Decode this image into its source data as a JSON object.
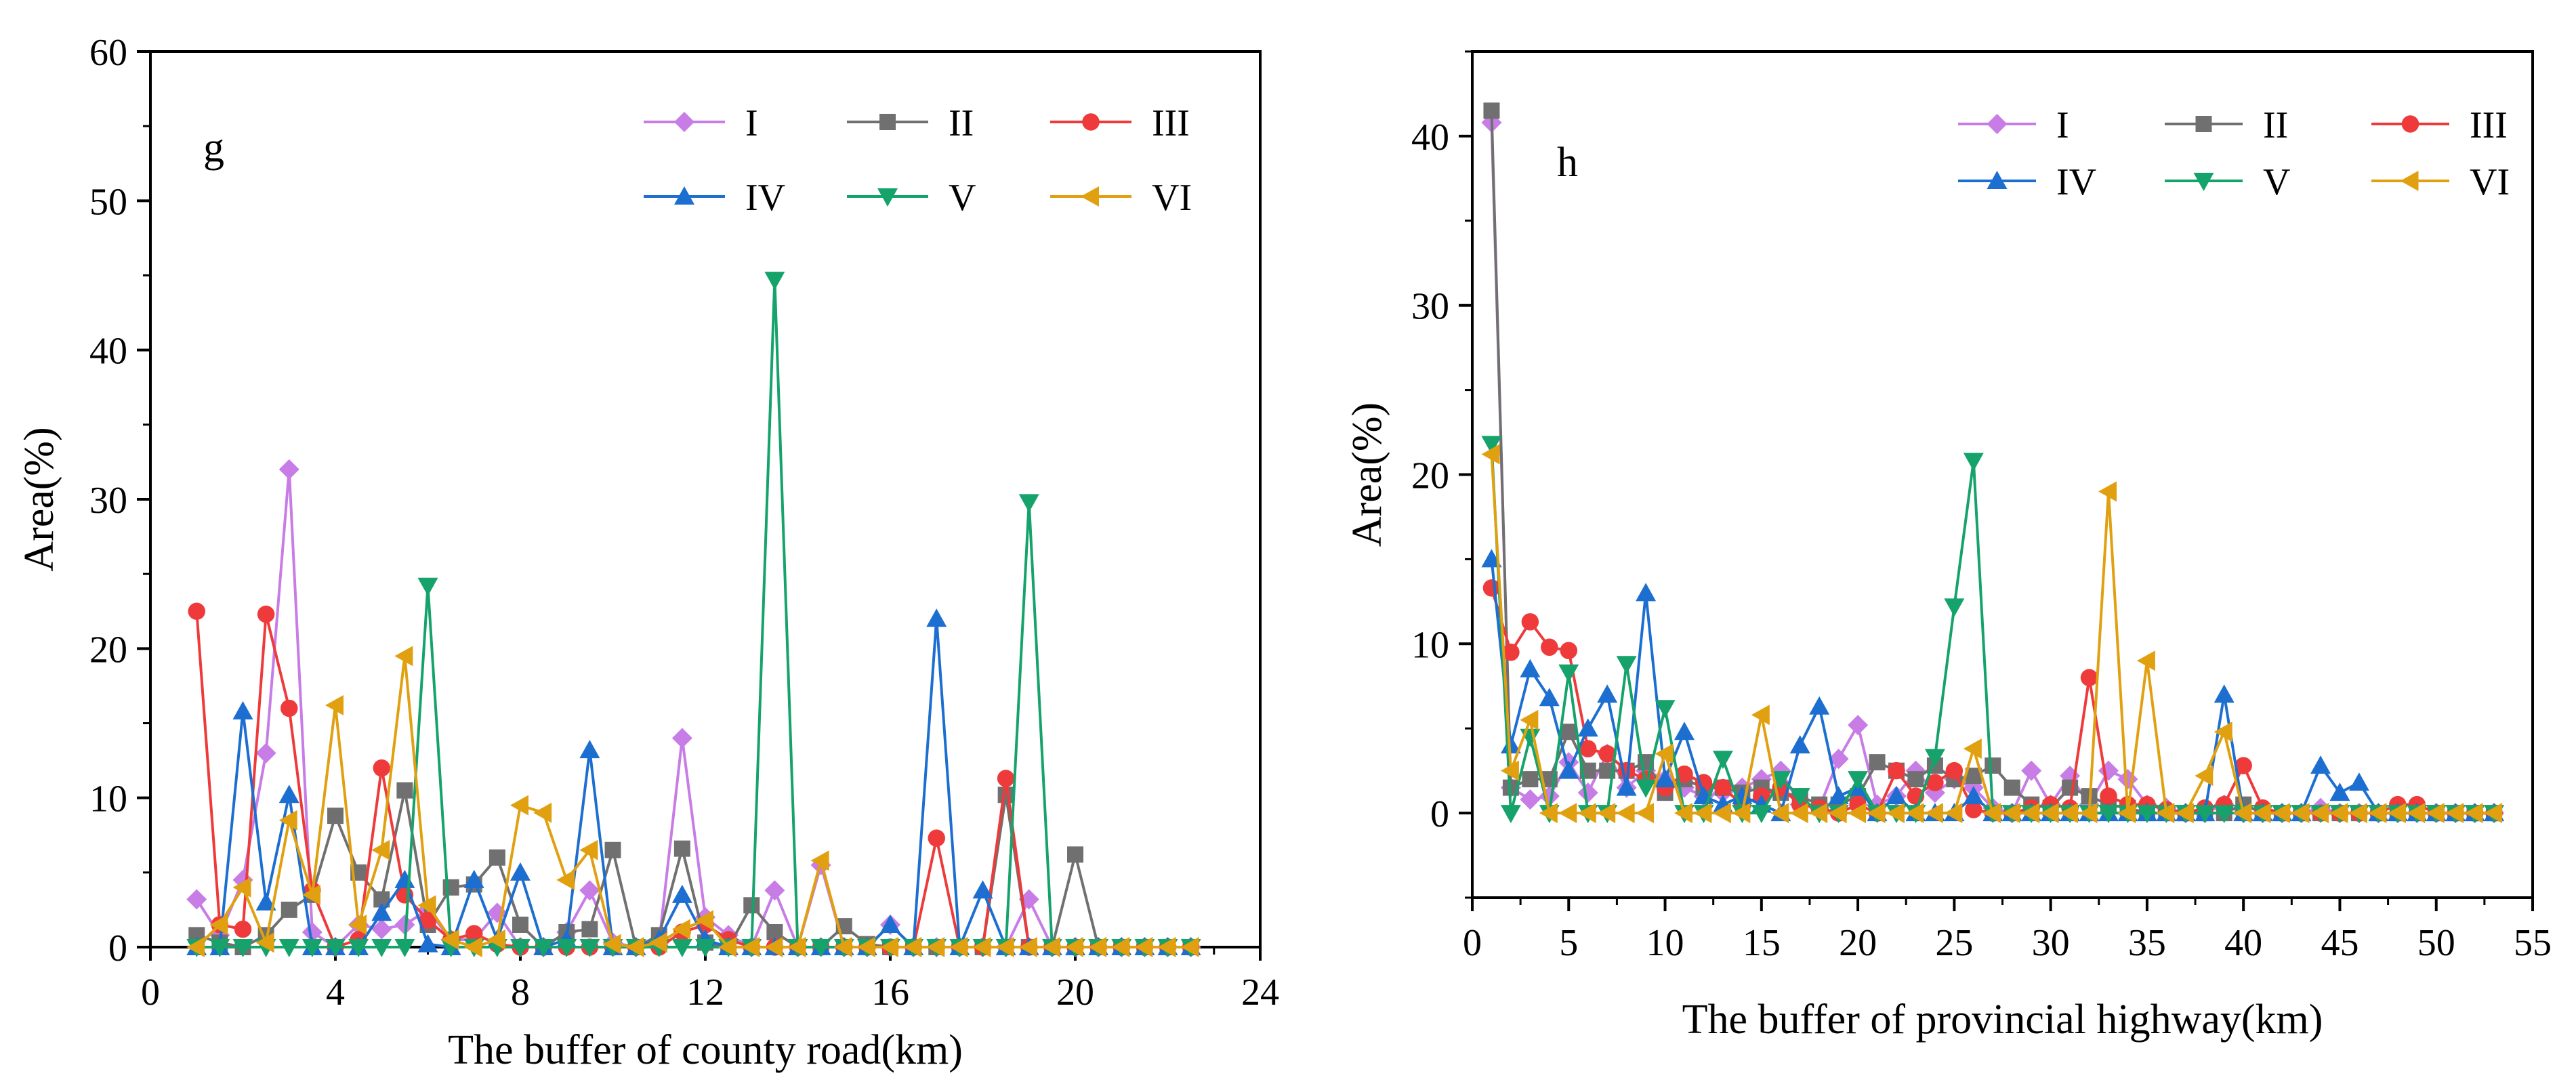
{
  "chart_data": [
    {
      "type": "line",
      "panel_label": "g",
      "title": "",
      "xlabel": "The buffer of county road(km)",
      "ylabel": "Area(%)",
      "xlim": [
        0,
        24
      ],
      "ylim": [
        0,
        60
      ],
      "xticks": [
        0,
        4,
        8,
        12,
        16,
        20,
        24
      ],
      "yticks": [
        0,
        10,
        20,
        30,
        40,
        50,
        60
      ],
      "grid": false,
      "legend_position": "top-right",
      "x": [
        1,
        1.5,
        2,
        2.5,
        3,
        3.5,
        4,
        4.5,
        5,
        5.5,
        6,
        6.5,
        7,
        7.5,
        8,
        8.5,
        9,
        9.5,
        10,
        10.5,
        11,
        11.5,
        12,
        12.5,
        13,
        13.5,
        14,
        14.5,
        15,
        15.5,
        16,
        16.5,
        17,
        17.5,
        18,
        18.5,
        19,
        19.5,
        20,
        20.5,
        21,
        21.5,
        22,
        22.5
      ],
      "series": [
        {
          "name": "I",
          "color": "#C77CE6",
          "marker": "diamond",
          "values": [
            3.2,
            0.8,
            4.5,
            13,
            32,
            1,
            0,
            1.5,
            1.2,
            1.5,
            2.5,
            0.5,
            0.5,
            2.3,
            0,
            0,
            1,
            3.8,
            0.3,
            0,
            0.3,
            14,
            2,
            0.8,
            0,
            3.8,
            0,
            5.5,
            0,
            0,
            1.5,
            0,
            0,
            0,
            0,
            0,
            3.2,
            0,
            0,
            0,
            0,
            0,
            0,
            0
          ]
        },
        {
          "name": "II",
          "color": "#707070",
          "marker": "square",
          "values": [
            0.8,
            0.3,
            0,
            0.8,
            2.5,
            3.5,
            8.8,
            5,
            3.2,
            10.5,
            1.5,
            4,
            4.2,
            6,
            1.5,
            0,
            1,
            1.2,
            6.5,
            0,
            0.8,
            6.6,
            0.3,
            0,
            2.8,
            1,
            0,
            0,
            1.4,
            0.2,
            0,
            0,
            0,
            0,
            0,
            10.2,
            0,
            0,
            6.2,
            0,
            0,
            0,
            0,
            0
          ]
        },
        {
          "name": "III",
          "color": "#EE3A3A",
          "marker": "circle",
          "values": [
            22.5,
            1.5,
            1.2,
            22.3,
            16,
            3.8,
            0,
            0.5,
            12,
            3.5,
            1.8,
            0.5,
            0.9,
            0.2,
            0,
            0,
            0,
            0,
            0,
            0,
            0,
            1,
            1.5,
            0.5,
            0,
            0,
            0,
            0,
            0,
            0,
            0,
            0,
            7.3,
            0,
            0,
            11.3,
            0,
            0,
            0,
            0,
            0,
            0,
            0,
            0
          ]
        },
        {
          "name": "IV",
          "color": "#1C6FD0",
          "marker": "triangle-up",
          "values": [
            0,
            0,
            15.8,
            3,
            10.2,
            0,
            0,
            0,
            2.3,
            4.5,
            0.2,
            0,
            4.5,
            0.5,
            5,
            0,
            0.5,
            13.2,
            0,
            0,
            0.5,
            3.5,
            0.5,
            0,
            0,
            0,
            0,
            0,
            0,
            0,
            1.5,
            0,
            22,
            0,
            3.8,
            0,
            0,
            0,
            0,
            0,
            0,
            0,
            0,
            0
          ]
        },
        {
          "name": "V",
          "color": "#15A36B",
          "marker": "triangle-down",
          "values": [
            0,
            0,
            0,
            0,
            0,
            0,
            0,
            0,
            0,
            0,
            24.2,
            0,
            0,
            0,
            0,
            0,
            0,
            0,
            0,
            0,
            0,
            0,
            0,
            0,
            0,
            44.7,
            0,
            0,
            0,
            0,
            0,
            0,
            0,
            0,
            0,
            0,
            29.8,
            0,
            0,
            0,
            0,
            0,
            0,
            0
          ]
        },
        {
          "name": "VI",
          "color": "#E0A010",
          "marker": "triangle-left",
          "values": [
            0,
            1.5,
            4,
            0.3,
            8.5,
            3.5,
            16.2,
            1.5,
            6.5,
            19.5,
            2.8,
            0.5,
            0,
            0.5,
            9.5,
            9,
            4.5,
            6.5,
            0.2,
            0,
            0.3,
            1.2,
            1.8,
            0,
            0,
            0,
            0,
            5.8,
            0,
            0,
            0,
            0,
            0,
            0,
            0,
            0,
            0,
            0,
            0,
            0,
            0,
            0,
            0,
            0
          ]
        }
      ]
    },
    {
      "type": "line",
      "panel_label": "h",
      "title": "",
      "xlabel": "The buffer of provincial highway(km)",
      "ylabel": "Area(%)",
      "xlim": [
        0,
        55
      ],
      "ylim": [
        -5,
        45
      ],
      "xticks": [
        0,
        5,
        10,
        15,
        20,
        25,
        30,
        35,
        40,
        45,
        50,
        55
      ],
      "yticks": [
        0,
        10,
        20,
        30,
        40
      ],
      "grid": false,
      "legend_position": "top-right",
      "x": [
        1,
        2,
        3,
        4,
        5,
        6,
        7,
        8,
        9,
        10,
        11,
        12,
        13,
        14,
        15,
        16,
        17,
        18,
        19,
        20,
        21,
        22,
        23,
        24,
        25,
        26,
        27,
        28,
        29,
        30,
        31,
        32,
        33,
        34,
        35,
        36,
        37,
        38,
        39,
        40,
        41,
        42,
        43,
        44,
        45,
        46,
        47,
        48,
        49,
        50,
        51,
        52,
        53
      ],
      "series": [
        {
          "name": "I",
          "color": "#C77CE6",
          "marker": "diamond",
          "values": [
            40.8,
            1.5,
            0.8,
            1,
            3,
            1.2,
            3.5,
            1.5,
            2.5,
            2,
            1.5,
            1,
            1.2,
            1.5,
            2,
            2.5,
            0.5,
            0.3,
            3.2,
            5.2,
            0.5,
            1,
            2.5,
            1.2,
            2,
            1.5,
            0.3,
            0,
            2.5,
            0.5,
            2.2,
            0.5,
            2.5,
            2,
            0.5,
            0.3,
            0,
            0,
            0.5,
            0,
            0,
            0,
            0,
            0.3,
            0,
            0,
            0,
            0,
            0,
            0,
            0,
            0,
            0
          ]
        },
        {
          "name": "II",
          "color": "#707070",
          "marker": "square",
          "values": [
            41.5,
            1.5,
            2,
            2,
            4.8,
            2.5,
            2.5,
            2.5,
            3,
            1.2,
            2,
            1.5,
            1.5,
            1.2,
            1.5,
            1.2,
            1,
            0.5,
            0.5,
            1,
            3,
            2.5,
            2,
            2.8,
            2,
            2.2,
            2.8,
            1.5,
            0.5,
            0.3,
            1.5,
            1,
            0.5,
            0.3,
            0,
            0,
            0,
            0,
            0,
            0.5,
            0,
            0,
            0,
            0,
            0,
            0,
            0,
            0,
            0,
            0,
            0,
            0,
            0
          ]
        },
        {
          "name": "III",
          "color": "#EE3A3A",
          "marker": "circle",
          "values": [
            13.3,
            9.5,
            11.3,
            9.8,
            9.6,
            3.8,
            3.5,
            2.5,
            2,
            1.5,
            2.3,
            1.8,
            1.5,
            0.5,
            1,
            1.5,
            0.5,
            0.3,
            0,
            0.5,
            0,
            2.5,
            1,
            1.8,
            2.5,
            0.2,
            0,
            0,
            0.3,
            0.5,
            0.3,
            8,
            1,
            0.5,
            0.5,
            0.2,
            0,
            0.3,
            0.5,
            2.8,
            0.3,
            0,
            0,
            0,
            0,
            0,
            0,
            0.5,
            0.5,
            0,
            0,
            0,
            0
          ]
        },
        {
          "name": "IV",
          "color": "#1C6FD0",
          "marker": "triangle-up",
          "values": [
            15,
            4,
            8.5,
            6.8,
            2.5,
            5,
            7,
            1.5,
            13,
            2,
            4.8,
            1,
            0.5,
            1,
            0.5,
            0,
            4,
            6.3,
            1,
            1.5,
            0,
            1,
            0,
            0,
            0,
            1,
            0,
            0,
            0,
            0,
            0,
            0,
            0,
            0,
            0,
            0,
            0,
            0,
            7,
            0,
            0,
            0,
            0,
            2.8,
            1.2,
            1.8,
            0,
            0,
            0,
            0,
            0,
            0,
            0
          ]
        },
        {
          "name": "V",
          "color": "#15A36B",
          "marker": "triangle-down",
          "values": [
            21.8,
            0,
            4.5,
            0,
            8.3,
            0,
            0,
            8.8,
            1.5,
            6.2,
            0,
            0,
            3.2,
            0,
            0,
            2,
            1,
            0,
            0,
            2,
            0,
            0,
            0,
            3.3,
            12.2,
            20.8,
            0,
            0,
            0,
            0,
            0,
            0,
            0,
            0,
            0,
            0,
            0,
            0,
            0,
            0,
            0,
            0,
            0,
            0,
            0,
            0,
            0,
            0,
            0,
            0,
            0,
            0,
            0
          ]
        },
        {
          "name": "VI",
          "color": "#E0A010",
          "marker": "triangle-left",
          "values": [
            21.2,
            2.5,
            5.5,
            0,
            0,
            0,
            0,
            0,
            0,
            3.5,
            0,
            0,
            0,
            0,
            5.8,
            0,
            0,
            0,
            0,
            0,
            0,
            0,
            0,
            0,
            0,
            3.8,
            0,
            0,
            0,
            0,
            0,
            0,
            19,
            0,
            9,
            0,
            0,
            2.2,
            4.8,
            0,
            0,
            0,
            0,
            0,
            0,
            0,
            0,
            0,
            0,
            0,
            0,
            0,
            0
          ]
        }
      ]
    }
  ]
}
